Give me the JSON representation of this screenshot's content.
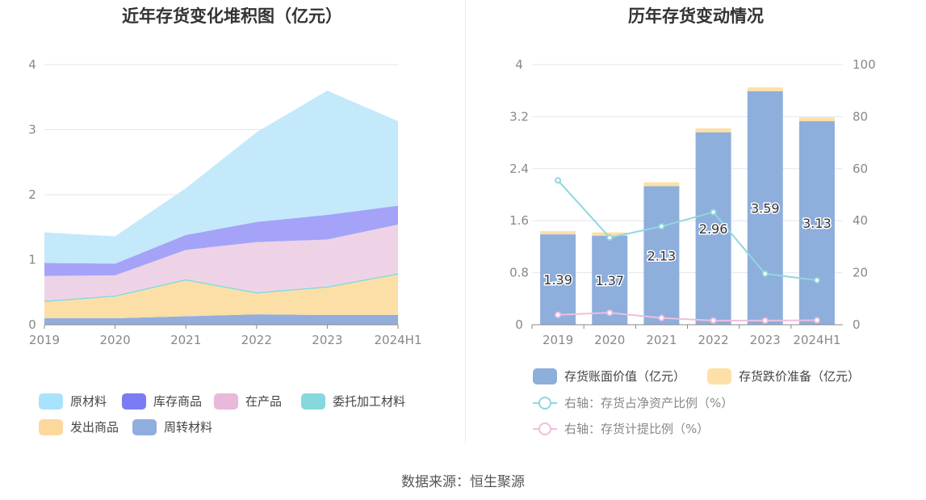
{
  "left_title": "近年存货变化堆积图（亿元）",
  "right_title": "历年存货变动情况",
  "source": "数据来源：恒生聚源",
  "chart_data": [
    {
      "type": "area",
      "stacked": true,
      "title": "近年存货变化堆积图（亿元）",
      "categories": [
        "2019",
        "2020",
        "2021",
        "2022",
        "2023",
        "2024H1"
      ],
      "ylim": [
        0,
        4
      ],
      "yticks": [
        "0",
        "1",
        "2",
        "3",
        "4"
      ],
      "grid": true,
      "legend_position": "bottom-left",
      "series": [
        {
          "name": "周转材料",
          "color": "#93aedc",
          "values": [
            0.1,
            0.1,
            0.13,
            0.16,
            0.15,
            0.15
          ]
        },
        {
          "name": "发出商品",
          "color": "#fcdfa6",
          "values": [
            0.25,
            0.33,
            0.55,
            0.32,
            0.42,
            0.62
          ]
        },
        {
          "name": "委托加工材料",
          "color": "#86d8dc",
          "values": [
            0.02,
            0.02,
            0.02,
            0.02,
            0.02,
            0.02
          ]
        },
        {
          "name": "在产品",
          "color": "#eed3e6",
          "values": [
            0.38,
            0.31,
            0.45,
            0.77,
            0.72,
            0.75
          ]
        },
        {
          "name": "库存商品",
          "color": "#a4a3f8",
          "values": [
            0.2,
            0.18,
            0.23,
            0.31,
            0.38,
            0.29
          ]
        },
        {
          "name": "原材料",
          "color": "#c3e9fb",
          "values": [
            0.47,
            0.42,
            0.72,
            1.38,
            1.91,
            1.3
          ]
        }
      ],
      "legend": [
        {
          "name": "原材料",
          "color": "#a9e2fb"
        },
        {
          "name": "库存商品",
          "color": "#7b7cf3"
        },
        {
          "name": "在产品",
          "color": "#e8b9da"
        },
        {
          "name": "委托加工材料",
          "color": "#86d8dc"
        },
        {
          "name": "发出商品",
          "color": "#fdd89c"
        },
        {
          "name": "周转材料",
          "color": "#8fadde"
        }
      ]
    },
    {
      "type": "bar",
      "stacked": true,
      "title": "历年存货变动情况",
      "categories": [
        "2019",
        "2020",
        "2021",
        "2022",
        "2023",
        "2024H1"
      ],
      "ylim": [
        0,
        4
      ],
      "yticks": [
        "0",
        "0.8",
        "1.6",
        "2.4",
        "3.2",
        "4"
      ],
      "y2lim": [
        0,
        100
      ],
      "y2ticks": [
        "0",
        "20",
        "40",
        "60",
        "80",
        "100"
      ],
      "grid": true,
      "legend_position": "bottom",
      "bar_series": [
        {
          "name": "存货账面价值（亿元）",
          "color": "#8eaedc",
          "values": [
            1.39,
            1.37,
            2.13,
            2.96,
            3.59,
            3.13
          ],
          "labels": [
            "1.39",
            "1.37",
            "2.13",
            "2.96",
            "3.59",
            "3.13"
          ]
        },
        {
          "name": "存货跌价准备（亿元）",
          "color": "#fde0a8",
          "values": [
            0.05,
            0.05,
            0.06,
            0.06,
            0.06,
            0.06
          ]
        }
      ],
      "line_series": [
        {
          "name": "右轴：存货占净资产比例（%）",
          "color": "#8ed8de",
          "values": [
            55.5,
            33.5,
            37.8,
            43.3,
            19.6,
            17.1
          ]
        },
        {
          "name": "右轴：存货计提比例（%）",
          "color": "#eebfdc",
          "values": [
            3.8,
            4.6,
            2.6,
            1.6,
            1.6,
            1.7
          ]
        }
      ]
    }
  ]
}
